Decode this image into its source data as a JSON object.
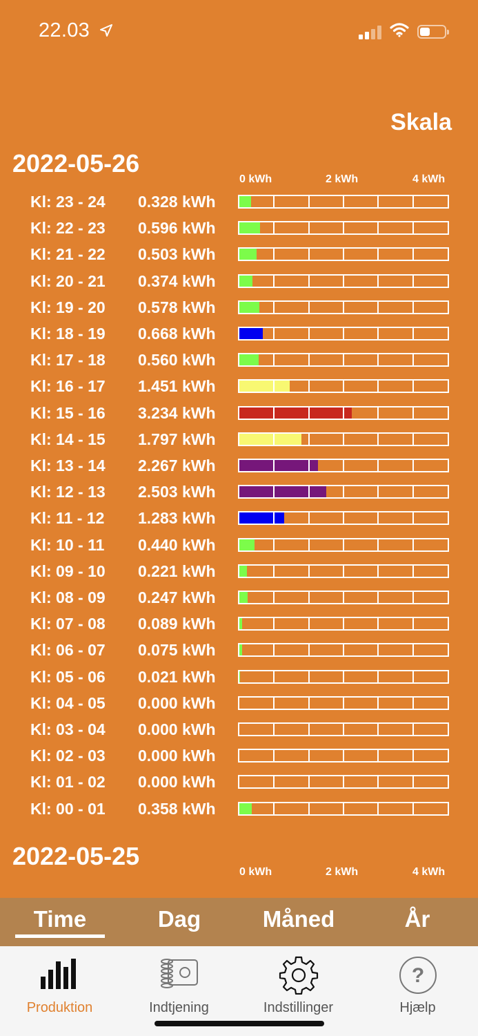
{
  "status": {
    "time": "22.03"
  },
  "header": {
    "scale_label": "Skala"
  },
  "scale_labels": [
    "0 kWh",
    "2 kWh",
    "4 kWh"
  ],
  "days": [
    {
      "date": "2022-05-26",
      "rows": [
        {
          "label": "Kl: 23 - 24",
          "value": "0.328 kWh",
          "kwh": 0.328,
          "color": "#7CFC4A"
        },
        {
          "label": "Kl: 22 - 23",
          "value": "0.596 kWh",
          "kwh": 0.596,
          "color": "#7CFC4A"
        },
        {
          "label": "Kl: 21 - 22",
          "value": "0.503 kWh",
          "kwh": 0.503,
          "color": "#7CFC4A"
        },
        {
          "label": "Kl: 20 - 21",
          "value": "0.374 kWh",
          "kwh": 0.374,
          "color": "#7CFC4A"
        },
        {
          "label": "Kl: 19 - 20",
          "value": "0.578 kWh",
          "kwh": 0.578,
          "color": "#7CFC4A"
        },
        {
          "label": "Kl: 18 - 19",
          "value": "0.668 kWh",
          "kwh": 0.668,
          "color": "#0000F0"
        },
        {
          "label": "Kl: 17 - 18",
          "value": "0.560 kWh",
          "kwh": 0.56,
          "color": "#7CFC4A"
        },
        {
          "label": "Kl: 16 - 17",
          "value": "1.451 kWh",
          "kwh": 1.451,
          "color": "#F8F872"
        },
        {
          "label": "Kl: 15 - 16",
          "value": "3.234 kWh",
          "kwh": 3.234,
          "color": "#C8281E"
        },
        {
          "label": "Kl: 14 - 15",
          "value": "1.797 kWh",
          "kwh": 1.797,
          "color": "#F8F872"
        },
        {
          "label": "Kl: 13 - 14",
          "value": "2.267 kWh",
          "kwh": 2.267,
          "color": "#76177A"
        },
        {
          "label": "Kl: 12 - 13",
          "value": "2.503 kWh",
          "kwh": 2.503,
          "color": "#76177A"
        },
        {
          "label": "Kl: 11 - 12",
          "value": "1.283 kWh",
          "kwh": 1.283,
          "color": "#0000F0"
        },
        {
          "label": "Kl: 10 - 11",
          "value": "0.440 kWh",
          "kwh": 0.44,
          "color": "#7CFC4A"
        },
        {
          "label": "Kl: 09 - 10",
          "value": "0.221 kWh",
          "kwh": 0.221,
          "color": "#7CFC4A"
        },
        {
          "label": "Kl: 08 - 09",
          "value": "0.247 kWh",
          "kwh": 0.247,
          "color": "#7CFC4A"
        },
        {
          "label": "Kl: 07 - 08",
          "value": "0.089 kWh",
          "kwh": 0.089,
          "color": "#7CFC4A"
        },
        {
          "label": "Kl: 06 - 07",
          "value": "0.075 kWh",
          "kwh": 0.075,
          "color": "#7CFC4A"
        },
        {
          "label": "Kl: 05 - 06",
          "value": "0.021 kWh",
          "kwh": 0.021,
          "color": "#7CFC4A"
        },
        {
          "label": "Kl: 04 - 05",
          "value": "0.000 kWh",
          "kwh": 0.0,
          "color": "#7CFC4A"
        },
        {
          "label": "Kl: 03 - 04",
          "value": "0.000 kWh",
          "kwh": 0.0,
          "color": "#7CFC4A"
        },
        {
          "label": "Kl: 02 - 03",
          "value": "0.000 kWh",
          "kwh": 0.0,
          "color": "#7CFC4A"
        },
        {
          "label": "Kl: 01 - 02",
          "value": "0.000 kWh",
          "kwh": 0.0,
          "color": "#7CFC4A"
        },
        {
          "label": "Kl: 00 - 01",
          "value": "0.358 kWh",
          "kwh": 0.358,
          "color": "#7CFC4A"
        }
      ]
    },
    {
      "date": "2022-05-25",
      "rows": []
    }
  ],
  "period_tabs": [
    {
      "label": "Time",
      "active": true
    },
    {
      "label": "Dag",
      "active": false
    },
    {
      "label": "Måned",
      "active": false
    },
    {
      "label": "År",
      "active": false
    }
  ],
  "bottom_nav": [
    {
      "label": "Produktion",
      "icon": "bar-chart-icon",
      "active": true
    },
    {
      "label": "Indtjening",
      "icon": "coins-icon",
      "active": false
    },
    {
      "label": "Indstillinger",
      "icon": "gear-icon",
      "active": false
    },
    {
      "label": "Hjælp",
      "icon": "help-icon",
      "active": false
    }
  ],
  "colors": {
    "background": "#E0812F",
    "period_bar": "#B3834F",
    "active_tab": "#E0812F"
  }
}
